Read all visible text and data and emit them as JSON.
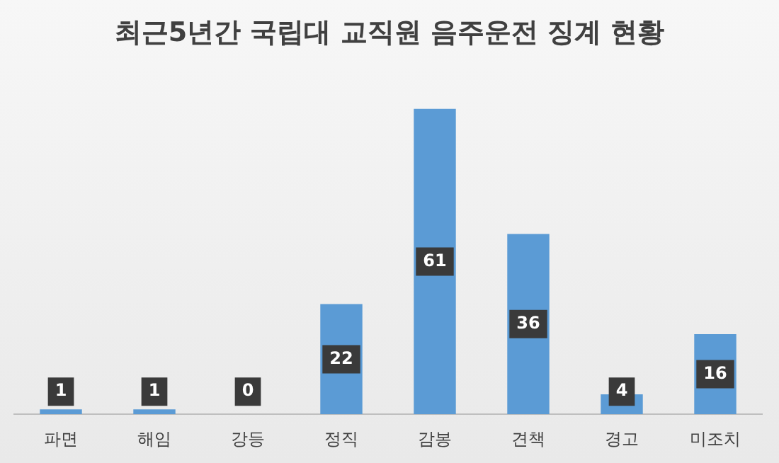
{
  "chart_data": {
    "type": "bar",
    "title": "최근5년간 국립대 교직원 음주운전 징계 현황",
    "categories": [
      "파면",
      "해임",
      "강등",
      "정직",
      "감봉",
      "견책",
      "경고",
      "미조치"
    ],
    "values": [
      1,
      1,
      0,
      22,
      61,
      36,
      4,
      16
    ],
    "color": "#5b9bd5",
    "data_labels": true,
    "grid": false,
    "legend": false
  }
}
